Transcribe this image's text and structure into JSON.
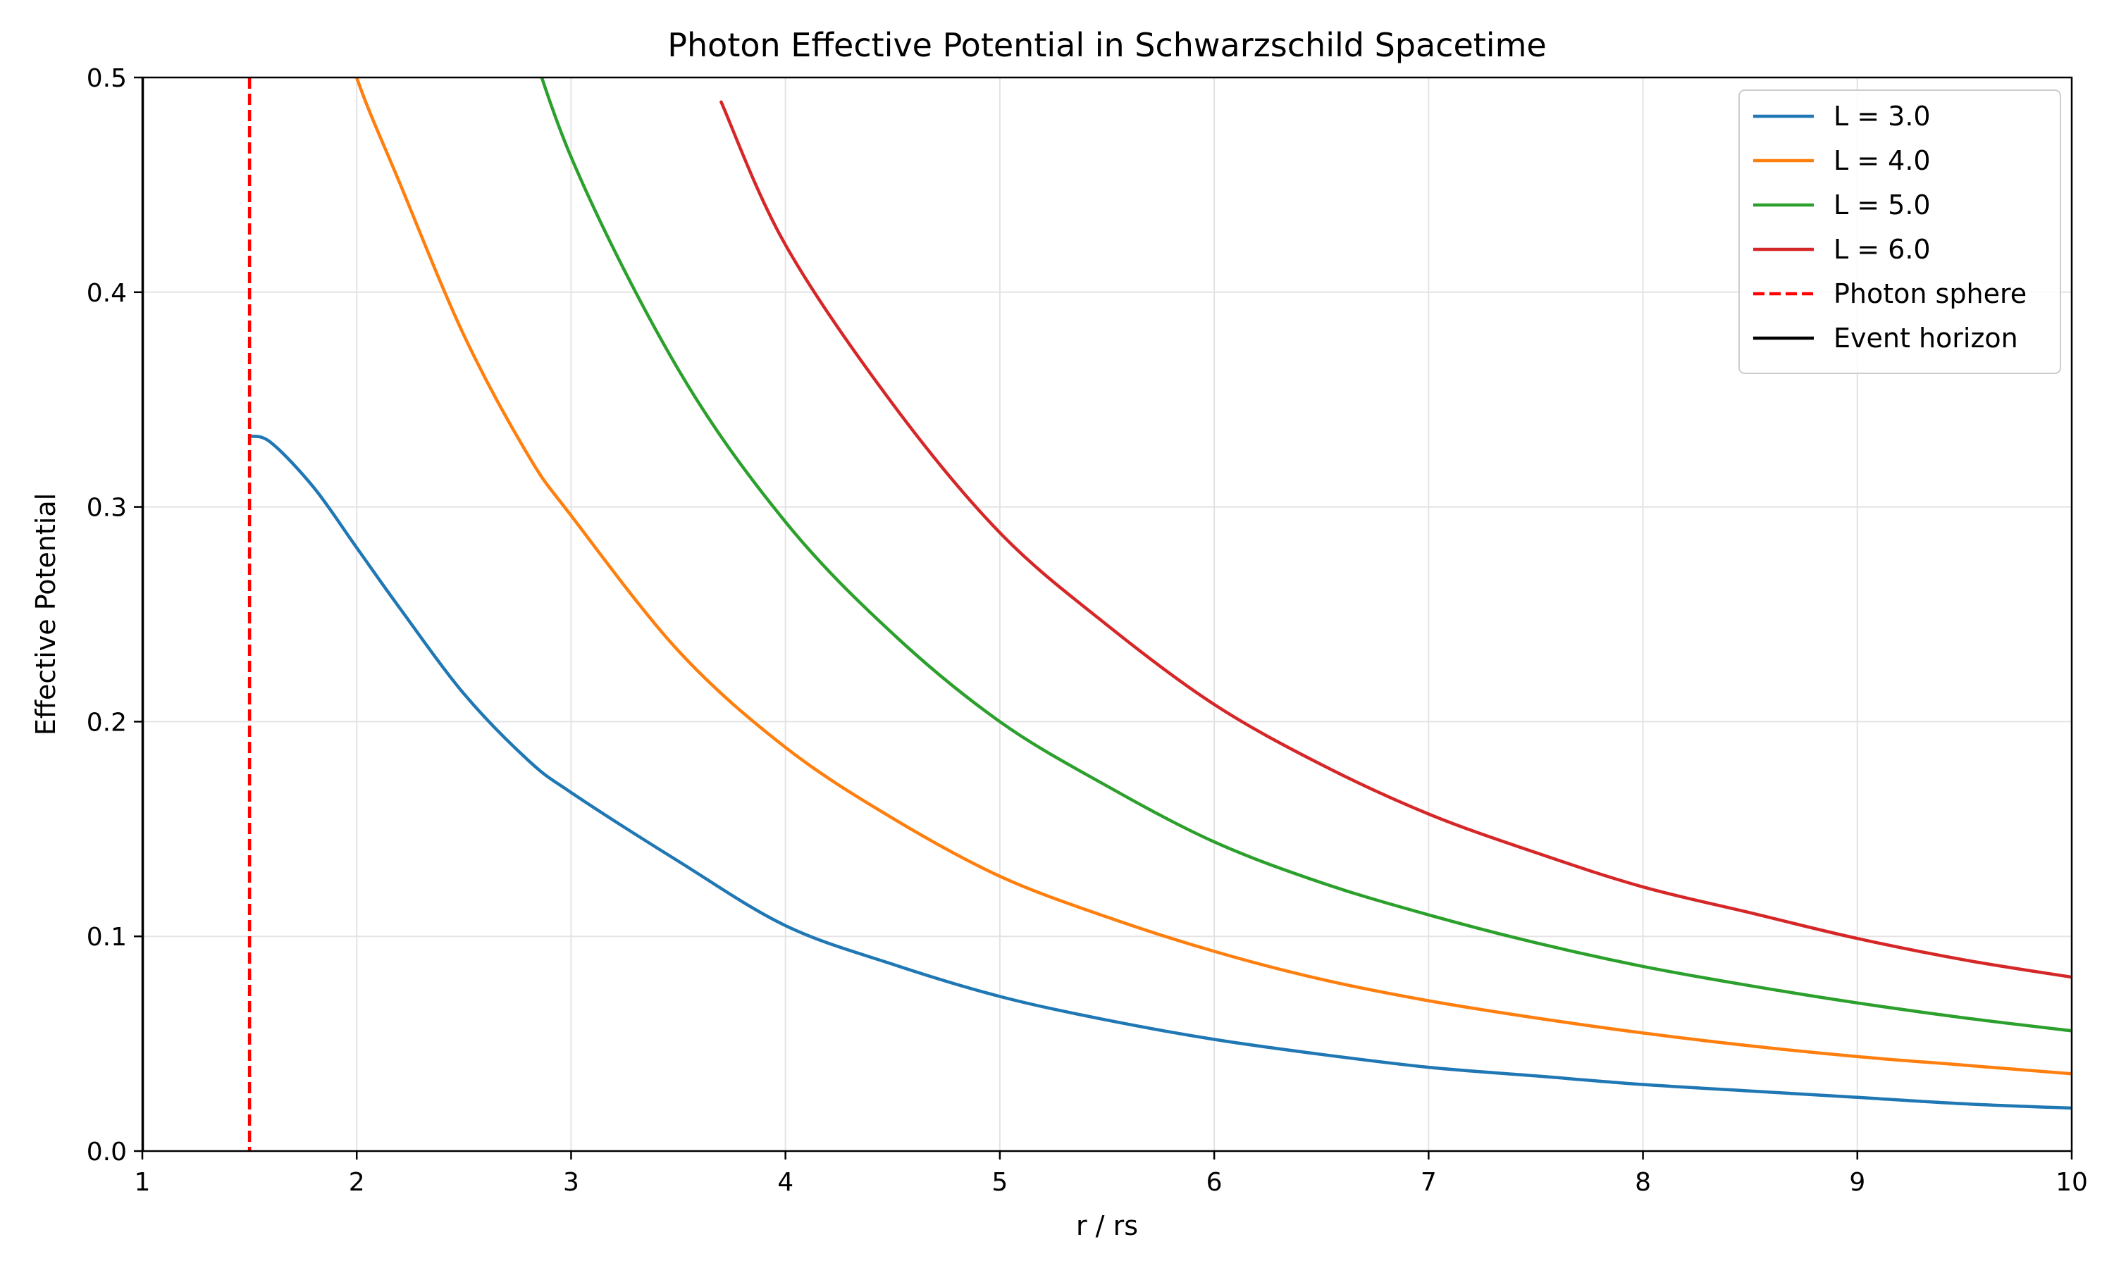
{
  "chart_data": {
    "type": "line",
    "title": "Photon Effective Potential in Schwarzschild Spacetime",
    "xlabel": "r / rs",
    "ylabel": "Effective Potential",
    "xlim": [
      1,
      10
    ],
    "ylim": [
      0,
      0.5
    ],
    "xticks": [
      1,
      2,
      3,
      4,
      5,
      6,
      7,
      8,
      9,
      10
    ],
    "xtick_labels": [
      "1",
      "2",
      "3",
      "4",
      "5",
      "6",
      "7",
      "8",
      "9",
      "10"
    ],
    "yticks": [
      0,
      0.1,
      0.2,
      0.3,
      0.4,
      0.5
    ],
    "ytick_labels": [
      "0.0",
      "0.1",
      "0.2",
      "0.3",
      "0.4",
      "0.5"
    ],
    "grid": true,
    "legend_position": "top-right",
    "x": [
      1.5,
      1.6,
      1.8,
      2.0,
      2.2,
      2.5,
      2.8,
      3.0,
      3.5,
      4.0,
      4.5,
      5.0,
      5.5,
      6.0,
      6.5,
      7.0,
      7.5,
      8.0,
      8.5,
      9.0,
      9.5,
      10.0
    ],
    "series": [
      {
        "name": "L = 3.0",
        "color": "#1f77b4",
        "values": [
          0.333,
          0.33,
          0.309,
          0.281,
          0.253,
          0.213,
          0.182,
          0.167,
          0.135,
          0.105,
          0.087,
          0.072,
          0.061,
          0.052,
          0.045,
          0.039,
          0.035,
          0.031,
          0.028,
          0.025,
          0.022,
          0.02
        ]
      },
      {
        "name": "L = 4.0",
        "color": "#ff7f0e",
        "values": [
          null,
          null,
          null,
          0.5,
          0.451,
          0.38,
          0.324,
          0.296,
          0.233,
          0.188,
          0.155,
          0.128,
          0.109,
          0.093,
          0.08,
          0.07,
          0.062,
          0.055,
          0.049,
          0.044,
          0.04,
          0.036
        ]
      },
      {
        "name": "L = 5.0",
        "color": "#2ca02c",
        "values": [
          null,
          null,
          null,
          null,
          null,
          null,
          null,
          0.463,
          0.364,
          0.293,
          0.241,
          0.2,
          0.17,
          0.144,
          0.125,
          0.11,
          0.097,
          0.086,
          0.077,
          0.069,
          0.062,
          0.056
        ]
      },
      {
        "name": "L = 6.0",
        "color": "#d62728",
        "values": [
          null,
          null,
          null,
          null,
          null,
          null,
          null,
          null,
          null,
          0.422,
          0.348,
          0.288,
          0.245,
          0.208,
          0.18,
          0.157,
          0.139,
          0.123,
          0.111,
          0.099,
          0.089,
          0.081
        ]
      }
    ],
    "reference_lines": [
      {
        "name": "Photon sphere",
        "x": 1.5,
        "color": "#ff0000",
        "style": "dashed"
      },
      {
        "name": "Event horizon",
        "x": 1.0,
        "color": "#000000",
        "style": "solid"
      }
    ]
  }
}
